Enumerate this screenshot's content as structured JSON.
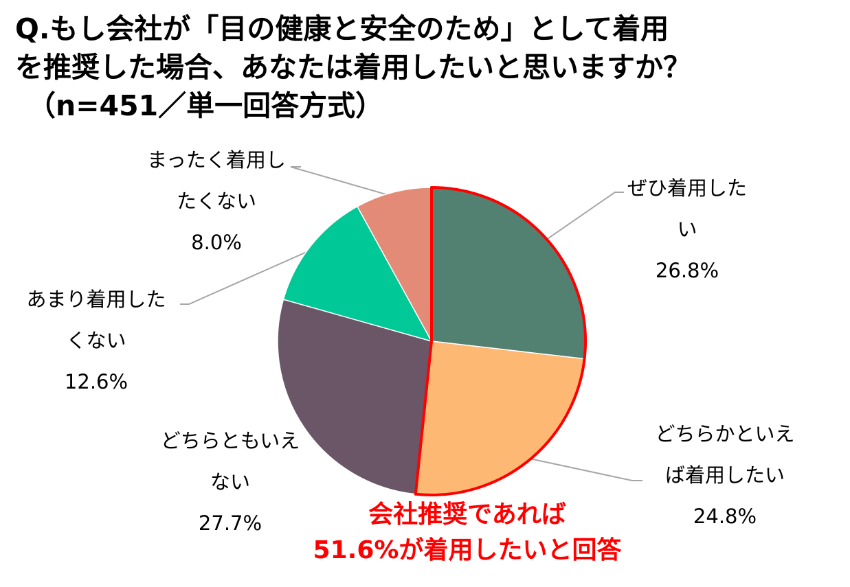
{
  "title": {
    "line1": "Q.もし会社が「目の健康と安全のため」として着用",
    "line2": "を推奨した場合、あなたは着用したいと思いますか？",
    "line3": "（n=451／単一回答方式）"
  },
  "chart_data": {
    "type": "pie",
    "start_angle_deg": 0,
    "direction": "clockwise",
    "slices": [
      {
        "label": "ぜひ着用したい",
        "label_lines": [
          "ぜひ着用した",
          "い"
        ],
        "value": 26.8,
        "value_text": "26.8%",
        "color": "#528071"
      },
      {
        "label": "どちらかといえば着用したい",
        "label_lines": [
          "どちらかといえ",
          "ば着用したい"
        ],
        "value": 24.8,
        "value_text": "24.8%",
        "color": "#fdb873"
      },
      {
        "label": "どちらともいえない",
        "label_lines": [
          "どちらともいえ",
          "ない"
        ],
        "value": 27.7,
        "value_text": "27.7%",
        "color": "#6a5666"
      },
      {
        "label": "あまり着用したくない",
        "label_lines": [
          "あまり着用した",
          "くない"
        ],
        "value": 12.6,
        "value_text": "12.6%",
        "color": "#00c896"
      },
      {
        "label": "まったく着用したくない",
        "label_lines": [
          "まったく着用し",
          "たくない"
        ],
        "value": 8.0,
        "value_text": "8.0%",
        "color": "#e48b78"
      }
    ],
    "highlight": {
      "slices": [
        0,
        1
      ],
      "outline_color": "#ff0000"
    },
    "leader_line_color": "#a6a6a6"
  },
  "note": {
    "line1": "会社推奨であれば",
    "line2": "51.6%が着用したいと回答",
    "color": "#ff0000"
  }
}
